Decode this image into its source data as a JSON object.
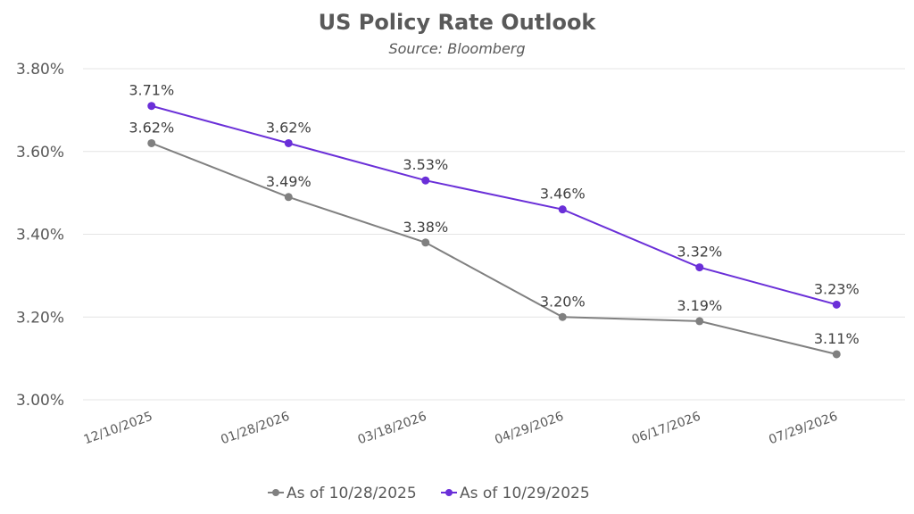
{
  "chart_data": {
    "type": "line",
    "title": "US Policy Rate Outlook",
    "subtitle": "Source: Bloomberg",
    "xlabel": "",
    "ylabel": "",
    "categories": [
      "12/10/2025",
      "01/28/2026",
      "03/18/2026",
      "04/29/2026",
      "06/17/2026",
      "07/29/2026"
    ],
    "ylim": [
      3.0,
      3.8
    ],
    "yticks": [
      3.0,
      3.2,
      3.4,
      3.6,
      3.8
    ],
    "ytick_labels": [
      "3.00%",
      "3.20%",
      "3.40%",
      "3.60%",
      "3.80%"
    ],
    "grid": true,
    "legend_position": "bottom",
    "series": [
      {
        "name": "As of 10/28/2025",
        "color": "#808080",
        "values": [
          3.62,
          3.49,
          3.38,
          3.2,
          3.19,
          3.11
        ],
        "labels": [
          "3.62%",
          "3.49%",
          "3.38%",
          "3.20%",
          "3.19%",
          "3.11%"
        ]
      },
      {
        "name": "As of 10/29/2025",
        "color": "#6a2fd8",
        "values": [
          3.71,
          3.62,
          3.53,
          3.46,
          3.32,
          3.23
        ],
        "labels": [
          "3.71%",
          "3.62%",
          "3.53%",
          "3.46%",
          "3.32%",
          "3.23%"
        ]
      }
    ]
  }
}
